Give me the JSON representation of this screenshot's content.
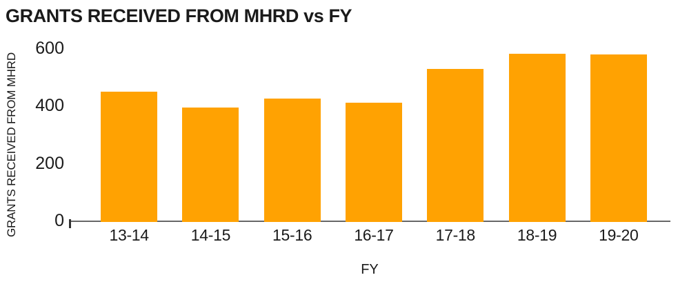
{
  "chart_data": {
    "type": "bar",
    "title": "GRANTS RECEIVED FROM MHRD vs FY",
    "xlabel": "FY",
    "ylabel": "GRANTS RECEIVED FROM MHRD",
    "categories": [
      "13-14",
      "14-15",
      "15-16",
      "16-17",
      "17-18",
      "18-19",
      "19-20"
    ],
    "values": [
      450,
      393,
      425,
      410,
      528,
      582,
      578
    ],
    "ylim": [
      0,
      600
    ],
    "yticks": [
      0,
      200,
      400,
      600
    ],
    "grid": "off",
    "legend": "none",
    "bar_color": "#FFA202",
    "axis_line_color": "#666666",
    "tick_mark_color": "#333333",
    "text_color": "#1A1A1A"
  }
}
